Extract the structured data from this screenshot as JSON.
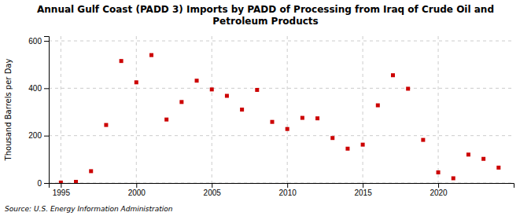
{
  "chart_data": {
    "type": "scatter",
    "title": "Annual Gulf Coast (PADD 3) Imports by PADD of Processing from Iraq of Crude Oil and\nPetroleum Products",
    "y_label": "Thousand Barrels per Day",
    "source": "Source: U.S. Energy Information Administration",
    "color": "#cc0000",
    "marker": "square",
    "grid": true,
    "xlim": [
      1994.2,
      2025.0
    ],
    "ylim": [
      0,
      620
    ],
    "xticks": [
      1995,
      2000,
      2005,
      2010,
      2015,
      2020
    ],
    "yticks": [
      0,
      200,
      400,
      600
    ],
    "x": [
      1995,
      1996,
      1997,
      1998,
      1999,
      2000,
      2001,
      2002,
      2003,
      2004,
      2005,
      2006,
      2007,
      2008,
      2009,
      2010,
      2011,
      2012,
      2013,
      2014,
      2015,
      2016,
      2017,
      2018,
      2019,
      2020,
      2021,
      2022,
      2023,
      2024
    ],
    "values": [
      2,
      5,
      50,
      245,
      515,
      425,
      540,
      268,
      342,
      432,
      395,
      368,
      310,
      393,
      258,
      228,
      275,
      273,
      190,
      145,
      162,
      328,
      455,
      398,
      182,
      45,
      20,
      120,
      102,
      65
    ]
  }
}
